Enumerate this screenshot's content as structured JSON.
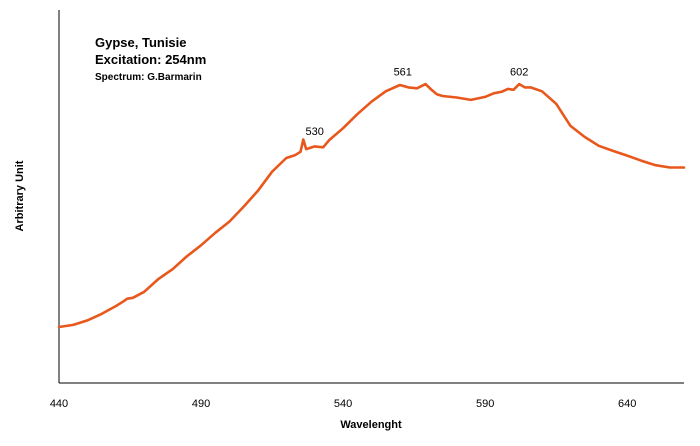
{
  "chart_data": {
    "type": "line",
    "title_lines": [
      "Gypse, Tunisie",
      "Excitation:  254nm",
      "Spectrum: G.Barmarin"
    ],
    "xlabel": "Wavelenght",
    "ylabel": "Arbitrary Unit",
    "xlim": [
      440,
      660
    ],
    "ylim": [
      0,
      100
    ],
    "x_ticks": [
      440,
      490,
      540,
      590,
      640
    ],
    "grid": false,
    "series": [
      {
        "color": "#e8581c",
        "x": [
          440,
          445,
          450,
          455,
          460,
          463,
          464,
          466,
          470,
          475,
          480,
          485,
          490,
          495,
          500,
          505,
          510,
          515,
          520,
          523,
          525,
          526,
          527,
          530,
          533,
          535,
          540,
          545,
          550,
          555,
          560,
          563,
          566,
          569,
          571,
          573,
          575,
          580,
          585,
          590,
          593,
          596,
          598,
          600,
          602,
          604,
          606,
          610,
          615,
          620,
          625,
          630,
          635,
          640,
          645,
          650,
          655,
          660
        ],
        "y": [
          18.8,
          19.5,
          21.0,
          23.2,
          25.8,
          27.6,
          28.3,
          28.6,
          30.6,
          34.9,
          38.2,
          42.5,
          46.2,
          50.4,
          54.2,
          59.2,
          64.5,
          70.9,
          75.5,
          76.4,
          77.6,
          81.7,
          78.5,
          79.4,
          79.1,
          81.4,
          85.5,
          90.2,
          94.4,
          97.9,
          100.0,
          99.2,
          98.9,
          100.3,
          98.5,
          96.9,
          96.3,
          95.8,
          95.0,
          96.0,
          97.2,
          97.8,
          98.7,
          98.4,
          100.3,
          99.2,
          99.2,
          97.9,
          93.7,
          86.3,
          82.6,
          79.6,
          77.9,
          76.3,
          74.6,
          73.1,
          72.3,
          72.3
        ]
      }
    ],
    "annotations": [
      {
        "text": "530",
        "x": 530,
        "y": 80.6
      },
      {
        "text": "561",
        "x": 561,
        "y": 100.5
      },
      {
        "text": "602",
        "x": 602,
        "y": 100.5
      }
    ]
  }
}
